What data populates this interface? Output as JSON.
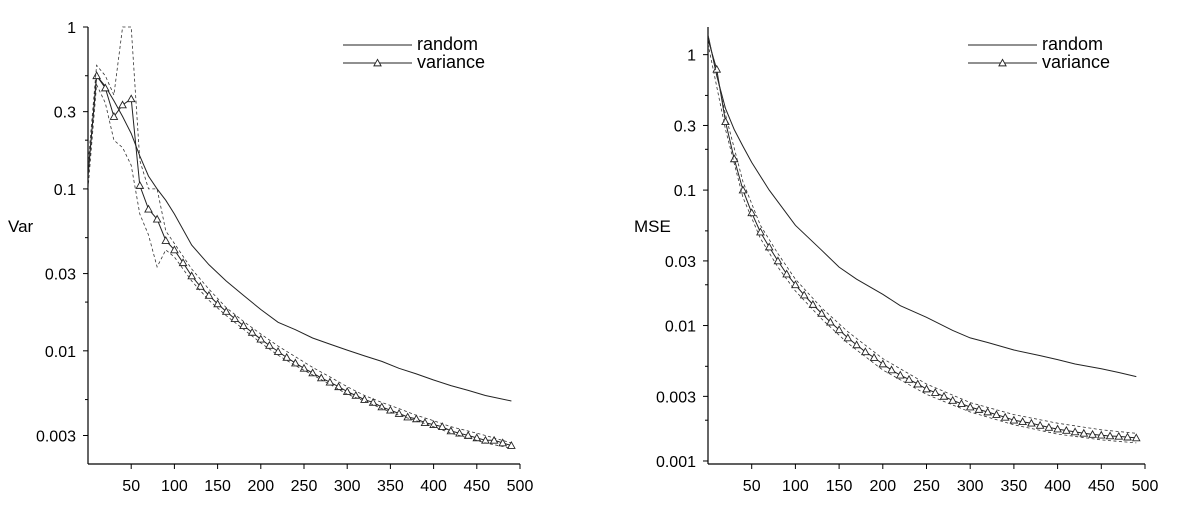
{
  "chart_data": [
    {
      "type": "line",
      "ylabel": "Var",
      "yscale": "log",
      "xlim": [
        0,
        500
      ],
      "ylim": [
        0.002,
        1
      ],
      "xticks": [
        50,
        100,
        150,
        200,
        250,
        300,
        350,
        400,
        450,
        500
      ],
      "xtick_labels": [
        "50",
        "100",
        "150",
        "200",
        "250",
        "300",
        "350",
        "400",
        "450",
        "500"
      ],
      "yticks": [
        1,
        0.3,
        0.1,
        0.03,
        0.01,
        0.003
      ],
      "ytick_labels": [
        "1",
        "0.3",
        "0.1",
        "0.03",
        "0.01",
        "0.003"
      ],
      "grid": false,
      "legend_position": "top-right",
      "series": [
        {
          "name": "random",
          "style": "solid",
          "x": [
            0,
            10,
            20,
            30,
            40,
            50,
            60,
            70,
            80,
            90,
            100,
            120,
            140,
            160,
            180,
            200,
            220,
            240,
            260,
            280,
            300,
            320,
            340,
            360,
            380,
            400,
            420,
            440,
            460,
            490
          ],
          "y": [
            0.12,
            0.5,
            0.43,
            0.35,
            0.28,
            0.22,
            0.16,
            0.12,
            0.1,
            0.085,
            0.07,
            0.045,
            0.034,
            0.027,
            0.022,
            0.018,
            0.015,
            0.0135,
            0.012,
            0.011,
            0.0101,
            0.0093,
            0.0086,
            0.0078,
            0.0072,
            0.0066,
            0.0061,
            0.0057,
            0.0053,
            0.0049
          ]
        },
        {
          "name": "variance",
          "style": "solid-triangle-markers",
          "x": [
            0,
            10,
            20,
            30,
            40,
            50,
            60,
            70,
            80,
            90,
            100,
            110,
            120,
            130,
            140,
            150,
            160,
            170,
            180,
            190,
            200,
            210,
            220,
            230,
            240,
            250,
            260,
            270,
            280,
            290,
            300,
            310,
            320,
            330,
            340,
            350,
            360,
            370,
            380,
            390,
            400,
            410,
            420,
            430,
            440,
            450,
            460,
            470,
            480,
            490
          ],
          "y": [
            0.12,
            0.5,
            0.42,
            0.28,
            0.33,
            0.36,
            0.105,
            0.075,
            0.065,
            0.048,
            0.042,
            0.035,
            0.029,
            0.025,
            0.022,
            0.0195,
            0.0175,
            0.0158,
            0.0143,
            0.013,
            0.0118,
            0.0108,
            0.0099,
            0.0091,
            0.0084,
            0.0078,
            0.0073,
            0.0068,
            0.0064,
            0.006,
            0.0056,
            0.0053,
            0.005,
            0.0048,
            0.0045,
            0.0043,
            0.0041,
            0.0039,
            0.0038,
            0.0036,
            0.0035,
            0.0034,
            0.0032,
            0.0031,
            0.003,
            0.0029,
            0.0028,
            0.0028,
            0.0027,
            0.0026
          ]
        },
        {
          "style": "dashed",
          "x": [
            0,
            10,
            20,
            30,
            40,
            50,
            60,
            70,
            80,
            90,
            100,
            120,
            140,
            160,
            180,
            200,
            220,
            240,
            260,
            280,
            300,
            320,
            340,
            360,
            380,
            400,
            420,
            440,
            460,
            490
          ],
          "y": [
            0.14,
            0.58,
            0.5,
            0.38,
            1.0,
            1.0,
            0.15,
            0.1,
            0.1,
            0.055,
            0.046,
            0.032,
            0.024,
            0.0185,
            0.0152,
            0.0127,
            0.0107,
            0.0092,
            0.0079,
            0.0069,
            0.006,
            0.0053,
            0.0048,
            0.0044,
            0.004,
            0.0037,
            0.0034,
            0.0032,
            0.003,
            0.0027
          ]
        },
        {
          "style": "dashed",
          "x": [
            0,
            10,
            20,
            30,
            40,
            50,
            60,
            70,
            80,
            90,
            100,
            120,
            140,
            160,
            180,
            200,
            220,
            240,
            260,
            280,
            300,
            320,
            340,
            360,
            380,
            400,
            420,
            440,
            460,
            490
          ],
          "y": [
            0.1,
            0.44,
            0.34,
            0.2,
            0.18,
            0.14,
            0.07,
            0.052,
            0.033,
            0.042,
            0.038,
            0.027,
            0.0205,
            0.0165,
            0.0136,
            0.0112,
            0.0094,
            0.0081,
            0.0071,
            0.0062,
            0.0054,
            0.0049,
            0.0044,
            0.004,
            0.0037,
            0.0034,
            0.0031,
            0.0029,
            0.0027,
            0.0025
          ]
        }
      ]
    },
    {
      "type": "line",
      "ylabel": "MSE",
      "yscale": "log",
      "xlim": [
        0,
        500
      ],
      "ylim": [
        0.00095,
        1.6
      ],
      "xticks": [
        50,
        100,
        150,
        200,
        250,
        300,
        350,
        400,
        450,
        500
      ],
      "xtick_labels": [
        "50",
        "100",
        "150",
        "200",
        "250",
        "300",
        "350",
        "400",
        "450",
        "500"
      ],
      "yticks": [
        1,
        0.3,
        0.1,
        0.03,
        0.01,
        0.003,
        0.001
      ],
      "ytick_labels": [
        "1",
        "0.3",
        "0.1",
        "0.03",
        "0.01",
        "0.003",
        "0.001"
      ],
      "grid": false,
      "legend_position": "top-right",
      "series": [
        {
          "name": "random",
          "style": "solid",
          "x": [
            0,
            10,
            20,
            30,
            40,
            50,
            70,
            100,
            130,
            150,
            170,
            200,
            220,
            250,
            280,
            300,
            320,
            350,
            380,
            400,
            420,
            450,
            470,
            490
          ],
          "y": [
            1.4,
            0.7,
            0.4,
            0.28,
            0.21,
            0.16,
            0.1,
            0.055,
            0.036,
            0.027,
            0.022,
            0.017,
            0.014,
            0.0115,
            0.0092,
            0.0081,
            0.0075,
            0.0066,
            0.006,
            0.0056,
            0.0052,
            0.0048,
            0.0045,
            0.0042
          ]
        },
        {
          "name": "variance",
          "style": "solid-triangle-markers",
          "x": [
            0,
            10,
            20,
            30,
            40,
            50,
            60,
            70,
            80,
            90,
            100,
            110,
            120,
            130,
            140,
            150,
            160,
            170,
            180,
            190,
            200,
            210,
            220,
            230,
            240,
            250,
            260,
            270,
            280,
            290,
            300,
            310,
            320,
            330,
            340,
            350,
            360,
            370,
            380,
            390,
            400,
            410,
            420,
            430,
            440,
            450,
            460,
            470,
            480,
            490
          ],
          "y": [
            1.3,
            0.78,
            0.32,
            0.17,
            0.1,
            0.068,
            0.049,
            0.038,
            0.03,
            0.024,
            0.02,
            0.0168,
            0.0143,
            0.0123,
            0.0106,
            0.0093,
            0.0081,
            0.0072,
            0.0064,
            0.0058,
            0.0052,
            0.0047,
            0.0043,
            0.004,
            0.0037,
            0.0034,
            0.0032,
            0.003,
            0.0028,
            0.00265,
            0.0025,
            0.0024,
            0.0023,
            0.0022,
            0.0021,
            0.002,
            0.00195,
            0.0019,
            0.00183,
            0.00177,
            0.00172,
            0.00168,
            0.00164,
            0.0016,
            0.00157,
            0.00155,
            0.00153,
            0.00152,
            0.0015,
            0.00148
          ]
        },
        {
          "style": "dashed",
          "x": [
            0,
            20,
            40,
            60,
            80,
            100,
            130,
            160,
            200,
            250,
            300,
            350,
            400,
            450,
            490
          ],
          "y": [
            1.4,
            0.36,
            0.115,
            0.055,
            0.034,
            0.022,
            0.0135,
            0.009,
            0.0057,
            0.0037,
            0.0027,
            0.0022,
            0.0019,
            0.0017,
            0.0016
          ]
        },
        {
          "style": "dashed",
          "x": [
            0,
            20,
            40,
            60,
            80,
            100,
            130,
            160,
            200,
            250,
            300,
            350,
            400,
            450,
            490
          ],
          "y": [
            1.2,
            0.28,
            0.088,
            0.044,
            0.027,
            0.018,
            0.0112,
            0.0074,
            0.0047,
            0.0031,
            0.0023,
            0.00185,
            0.00158,
            0.00143,
            0.00136
          ]
        }
      ]
    }
  ]
}
